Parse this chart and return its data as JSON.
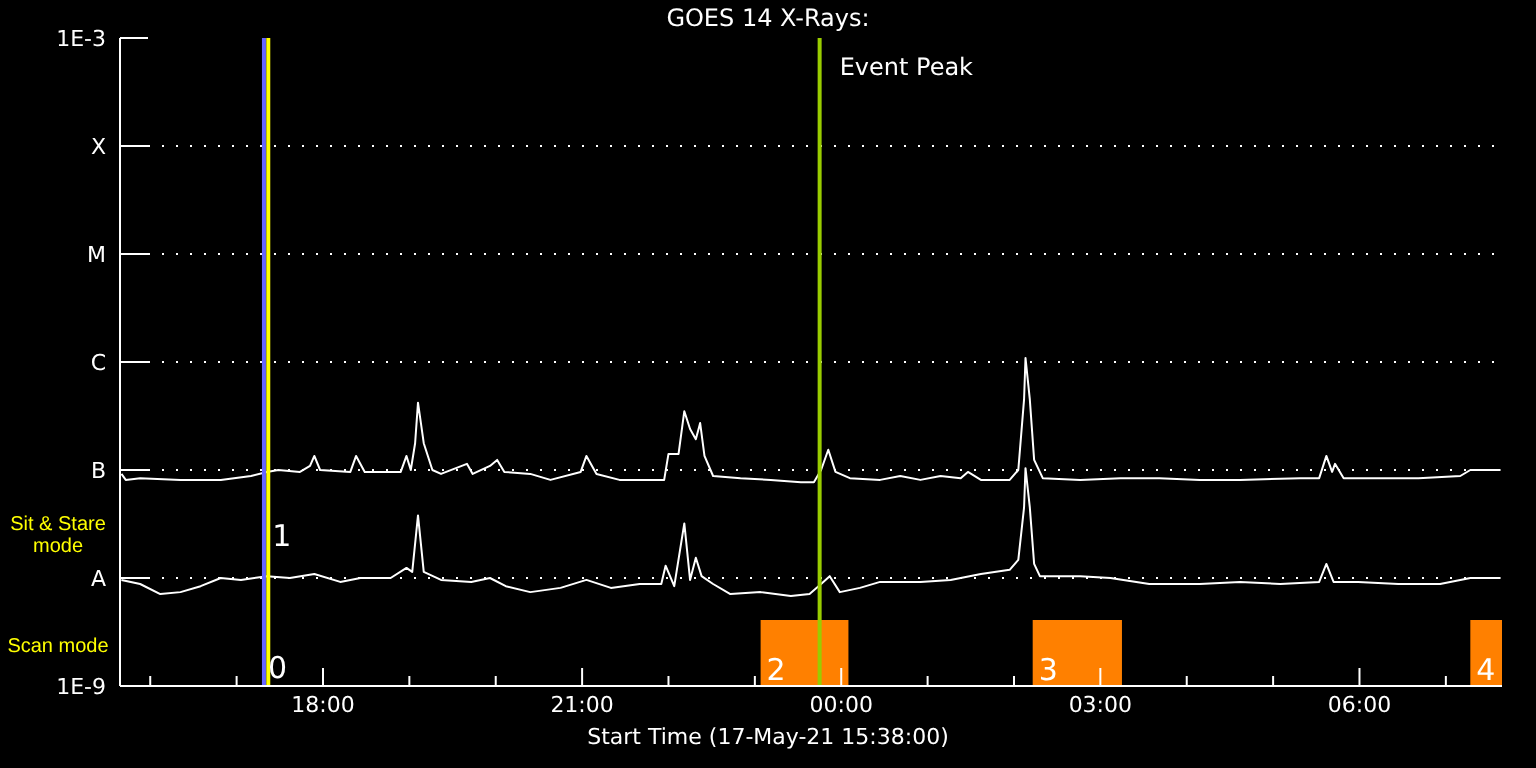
{
  "chart_data": {
    "type": "line",
    "title": "GOES 14 X-Rays:",
    "xlabel": "Start Time (17-May-21 15:38:00)",
    "xlim": [
      "--05-17T15:39",
      "--05-18T07:39"
    ],
    "xticks": [
      {
        "value": "--05-17T16:00",
        "label": null
      },
      {
        "value": "--05-17T17:00",
        "label": null
      },
      {
        "value": "--05-17T18:00",
        "label": "18:00"
      },
      {
        "value": "--05-17T19:00",
        "label": null
      },
      {
        "value": "--05-17T20:00",
        "label": null
      },
      {
        "value": "--05-17T21:00",
        "label": "21:00"
      },
      {
        "value": "--05-17T22:00",
        "label": null
      },
      {
        "value": "--05-17T23:00",
        "label": null
      },
      {
        "value": "--05-18T00:00",
        "label": "00:00"
      },
      {
        "value": "--05-18T01:00",
        "label": null
      },
      {
        "value": "--05-18T02:00",
        "label": null
      },
      {
        "value": "--05-18T03:00",
        "label": "03:00"
      },
      {
        "value": "--05-18T04:00",
        "label": null
      },
      {
        "value": "--05-18T05:00",
        "label": null
      },
      {
        "value": "--05-18T06:00",
        "label": "06:00"
      },
      {
        "value": "--05-18T07:00",
        "label": null
      }
    ],
    "ylim": [
      1e-09,
      0.001
    ],
    "yticks": [
      {
        "value": 1e-09,
        "label": "1E-9"
      },
      {
        "value": 1e-08,
        "label": "A"
      },
      {
        "value": 1e-07,
        "label": "B"
      },
      {
        "value": 1e-06,
        "label": "C"
      },
      {
        "value": 1e-05,
        "label": "M"
      },
      {
        "value": 0.0001,
        "label": "X"
      },
      {
        "value": 0.001,
        "label": "1E-3"
      }
    ],
    "log": "y",
    "grid": "y",
    "line_style": "solid",
    "marker": "none",
    "series": [
      {
        "color": "#ffffff",
        "x": [
          "--05-17T15:40",
          "--05-17T15:43",
          "--05-17T15:53",
          "--05-17T16:21",
          "--05-17T16:49",
          "--05-17T17:10",
          "--05-17T17:21",
          "--05-17T17:29",
          "--05-17T17:44",
          "--05-17T17:51",
          "--05-17T17:54",
          "--05-17T17:58",
          "--05-17T18:19",
          "--05-17T18:23",
          "--05-17T18:29",
          "--05-17T18:54",
          "--05-17T18:58",
          "--05-17T19:01",
          "--05-17T19:04",
          "--05-17T19:06",
          "--05-17T19:10",
          "--05-17T19:16",
          "--05-17T19:22",
          "--05-17T19:40",
          "--05-17T19:44",
          "--05-17T19:56",
          "--05-17T20:01",
          "--05-17T20:06",
          "--05-17T20:24",
          "--05-17T20:38",
          "--05-17T20:59",
          "--05-17T21:03",
          "--05-17T21:10",
          "--05-17T21:26",
          "--05-17T21:47",
          "--05-17T21:57",
          "--05-17T22:00",
          "--05-17T22:07",
          "--05-17T22:11",
          "--05-17T22:15",
          "--05-17T22:19",
          "--05-17T22:22",
          "--05-17T22:25",
          "--05-17T22:31",
          "--05-17T22:50",
          "--05-17T23:11",
          "--05-17T23:32",
          "--05-17T23:41",
          "--05-17T23:46",
          "--05-17T23:51",
          "--05-17T23:56",
          "--05-18T00:06",
          "--05-18T00:27",
          "--05-18T00:41",
          "--05-18T00:55",
          "--05-18T01:09",
          "--05-18T01:23",
          "--05-18T01:28",
          "--05-18T01:37",
          "--05-18T01:57",
          "--05-18T02:03",
          "--05-18T02:07",
          "--05-18T02:08",
          "--05-18T02:11",
          "--05-18T02:14",
          "--05-18T02:20",
          "--05-18T02:46",
          "--05-18T03:14",
          "--05-18T03:41",
          "--05-18T04:09",
          "--05-18T04:37",
          "--05-18T05:19",
          "--05-18T05:32",
          "--05-18T05:37",
          "--05-18T05:41",
          "--05-18T05:43",
          "--05-18T05:49",
          "--05-18T06:13",
          "--05-18T06:41",
          "--05-18T07:10",
          "--05-18T07:17",
          "--05-18T07:38"
        ],
        "values": [
          9.2e-08,
          8.1e-08,
          8.4e-08,
          8.1e-08,
          8.1e-08,
          8.8e-08,
          9.6e-08,
          1e-07,
          9.6e-08,
          1.09e-07,
          1.35e-07,
          1e-07,
          9.6e-08,
          1.35e-07,
          9.6e-08,
          9.6e-08,
          1.35e-07,
          1e-07,
          1.77e-07,
          4.2e-07,
          1.77e-07,
          1e-07,
          9.2e-08,
          1.14e-07,
          9.2e-08,
          1.09e-07,
          1.24e-07,
          9.6e-08,
          9.2e-08,
          8.1e-08,
          9.6e-08,
          1.35e-07,
          9.2e-08,
          8.1e-08,
          8.1e-08,
          8.1e-08,
          1.41e-07,
          1.41e-07,
          3.5e-07,
          2.4e-07,
          1.93e-07,
          2.72e-07,
          1.35e-07,
          8.8e-08,
          8.4e-08,
          8.1e-08,
          7.7e-08,
          7.7e-08,
          1e-07,
          1.54e-07,
          9.6e-08,
          8.4e-08,
          8.1e-08,
          8.8e-08,
          8.1e-08,
          8.8e-08,
          8.4e-08,
          9.6e-08,
          8.1e-08,
          8.1e-08,
          1e-07,
          4.5e-07,
          1.09e-06,
          4.5e-07,
          1.24e-07,
          8.4e-08,
          8.1e-08,
          8.4e-08,
          8.4e-08,
          8.1e-08,
          8.1e-08,
          8.4e-08,
          8.4e-08,
          1.35e-07,
          9.6e-08,
          1.14e-07,
          8.4e-08,
          8.4e-08,
          8.4e-08,
          8.8e-08,
          1e-07,
          1e-07
        ]
      },
      {
        "color": "#ffffff",
        "x": [
          "--05-17T15:40",
          "--05-17T15:53",
          "--05-17T16:07",
          "--05-17T16:21",
          "--05-17T16:35",
          "--05-17T16:49",
          "--05-17T17:03",
          "--05-17T17:21",
          "--05-17T17:37",
          "--05-17T17:54",
          "--05-17T18:12",
          "--05-17T18:26",
          "--05-17T18:47",
          "--05-17T18:58",
          "--05-17T19:02",
          "--05-17T19:06",
          "--05-17T19:10",
          "--05-17T19:22",
          "--05-17T19:43",
          "--05-17T19:56",
          "--05-17T20:07",
          "--05-17T20:24",
          "--05-17T20:45",
          "--05-17T21:03",
          "--05-17T21:20",
          "--05-17T21:40",
          "--05-17T21:55",
          "--05-17T21:58",
          "--05-17T22:04",
          "--05-17T22:11",
          "--05-17T22:15",
          "--05-17T22:19",
          "--05-17T22:23",
          "--05-17T22:31",
          "--05-17T22:43",
          "--05-17T23:04",
          "--05-17T23:25",
          "--05-17T23:38",
          "--05-17T23:46",
          "--05-17T23:52",
          "--05-17T23:59",
          "--05-18T00:13",
          "--05-18T00:27",
          "--05-18T00:55",
          "--05-18T01:16",
          "--05-18T01:37",
          "--05-18T01:57",
          "--05-18T02:03",
          "--05-18T02:07",
          "--05-18T02:08",
          "--05-18T02:11",
          "--05-18T02:14",
          "--05-18T02:18",
          "--05-18T02:46",
          "--05-18T03:07",
          "--05-18T03:34",
          "--05-18T04:09",
          "--05-18T04:37",
          "--05-18T05:05",
          "--05-18T05:32",
          "--05-18T05:37",
          "--05-18T05:42",
          "--05-18T05:59",
          "--05-18T06:27",
          "--05-18T06:56",
          "--05-18T07:17",
          "--05-18T07:38"
        ],
        "values": [
          9.6e-09,
          8.8e-09,
          7.1e-09,
          7.4e-09,
          8.4e-09,
          1e-08,
          9.6e-09,
          1.04e-08,
          1e-08,
          1.09e-08,
          9.2e-09,
          1e-08,
          1e-08,
          1.24e-08,
          1.14e-08,
          3.8e-08,
          1.14e-08,
          9.6e-09,
          9.2e-09,
          1e-08,
          8.4e-09,
          7.4e-09,
          8.1e-09,
          9.6e-09,
          8.1e-09,
          8.8e-09,
          8.8e-09,
          1.3e-08,
          8.4e-09,
          3.2e-08,
          9.6e-09,
          1.54e-08,
          1.04e-08,
          8.8e-09,
          7.1e-09,
          7.4e-09,
          6.8e-09,
          7.1e-09,
          8.8e-09,
          1.04e-08,
          7.4e-09,
          8.1e-09,
          9.2e-09,
          9.2e-09,
          9.6e-09,
          1.09e-08,
          1.19e-08,
          1.47e-08,
          4.5e-08,
          1.04e-07,
          4.5e-08,
          1.35e-08,
          1.04e-08,
          1.04e-08,
          1e-08,
          8.8e-09,
          8.8e-09,
          9.2e-09,
          8.8e-09,
          9.2e-09,
          1.35e-08,
          9.2e-09,
          9.2e-09,
          8.8e-09,
          8.8e-09,
          1e-08,
          1e-08
        ]
      }
    ],
    "ref_lines": [
      {
        "axis": "x",
        "value": "--05-17T17:19",
        "label": null,
        "color": "#6666ff"
      },
      {
        "axis": "x",
        "value": "--05-17T17:22",
        "label": null,
        "color": "#ffff00"
      },
      {
        "axis": "x",
        "value": "--05-17T23:45",
        "label": "Event Peak",
        "color": "#99cc00"
      }
    ],
    "bands": [
      {
        "axis": "x",
        "from": "--05-17T23:04",
        "to": "--05-18T00:05",
        "label": "2",
        "color": "#ff8000"
      },
      {
        "axis": "x",
        "from": "--05-18T02:13",
        "to": "--05-18T03:15",
        "label": "3",
        "color": "#ff8000"
      },
      {
        "axis": "x",
        "from": "--05-18T07:17",
        "to": "--05-18T07:39",
        "label": "4",
        "color": "#ff8000"
      }
    ],
    "annotations": [
      {
        "text": "0",
        "x": "--05-17T17:19",
        "y": 1.5e-09
      },
      {
        "text": "1",
        "x": "--05-17T17:22",
        "y": 2.5e-08
      },
      "Sit & Stare mode",
      "Scan mode"
    ]
  }
}
